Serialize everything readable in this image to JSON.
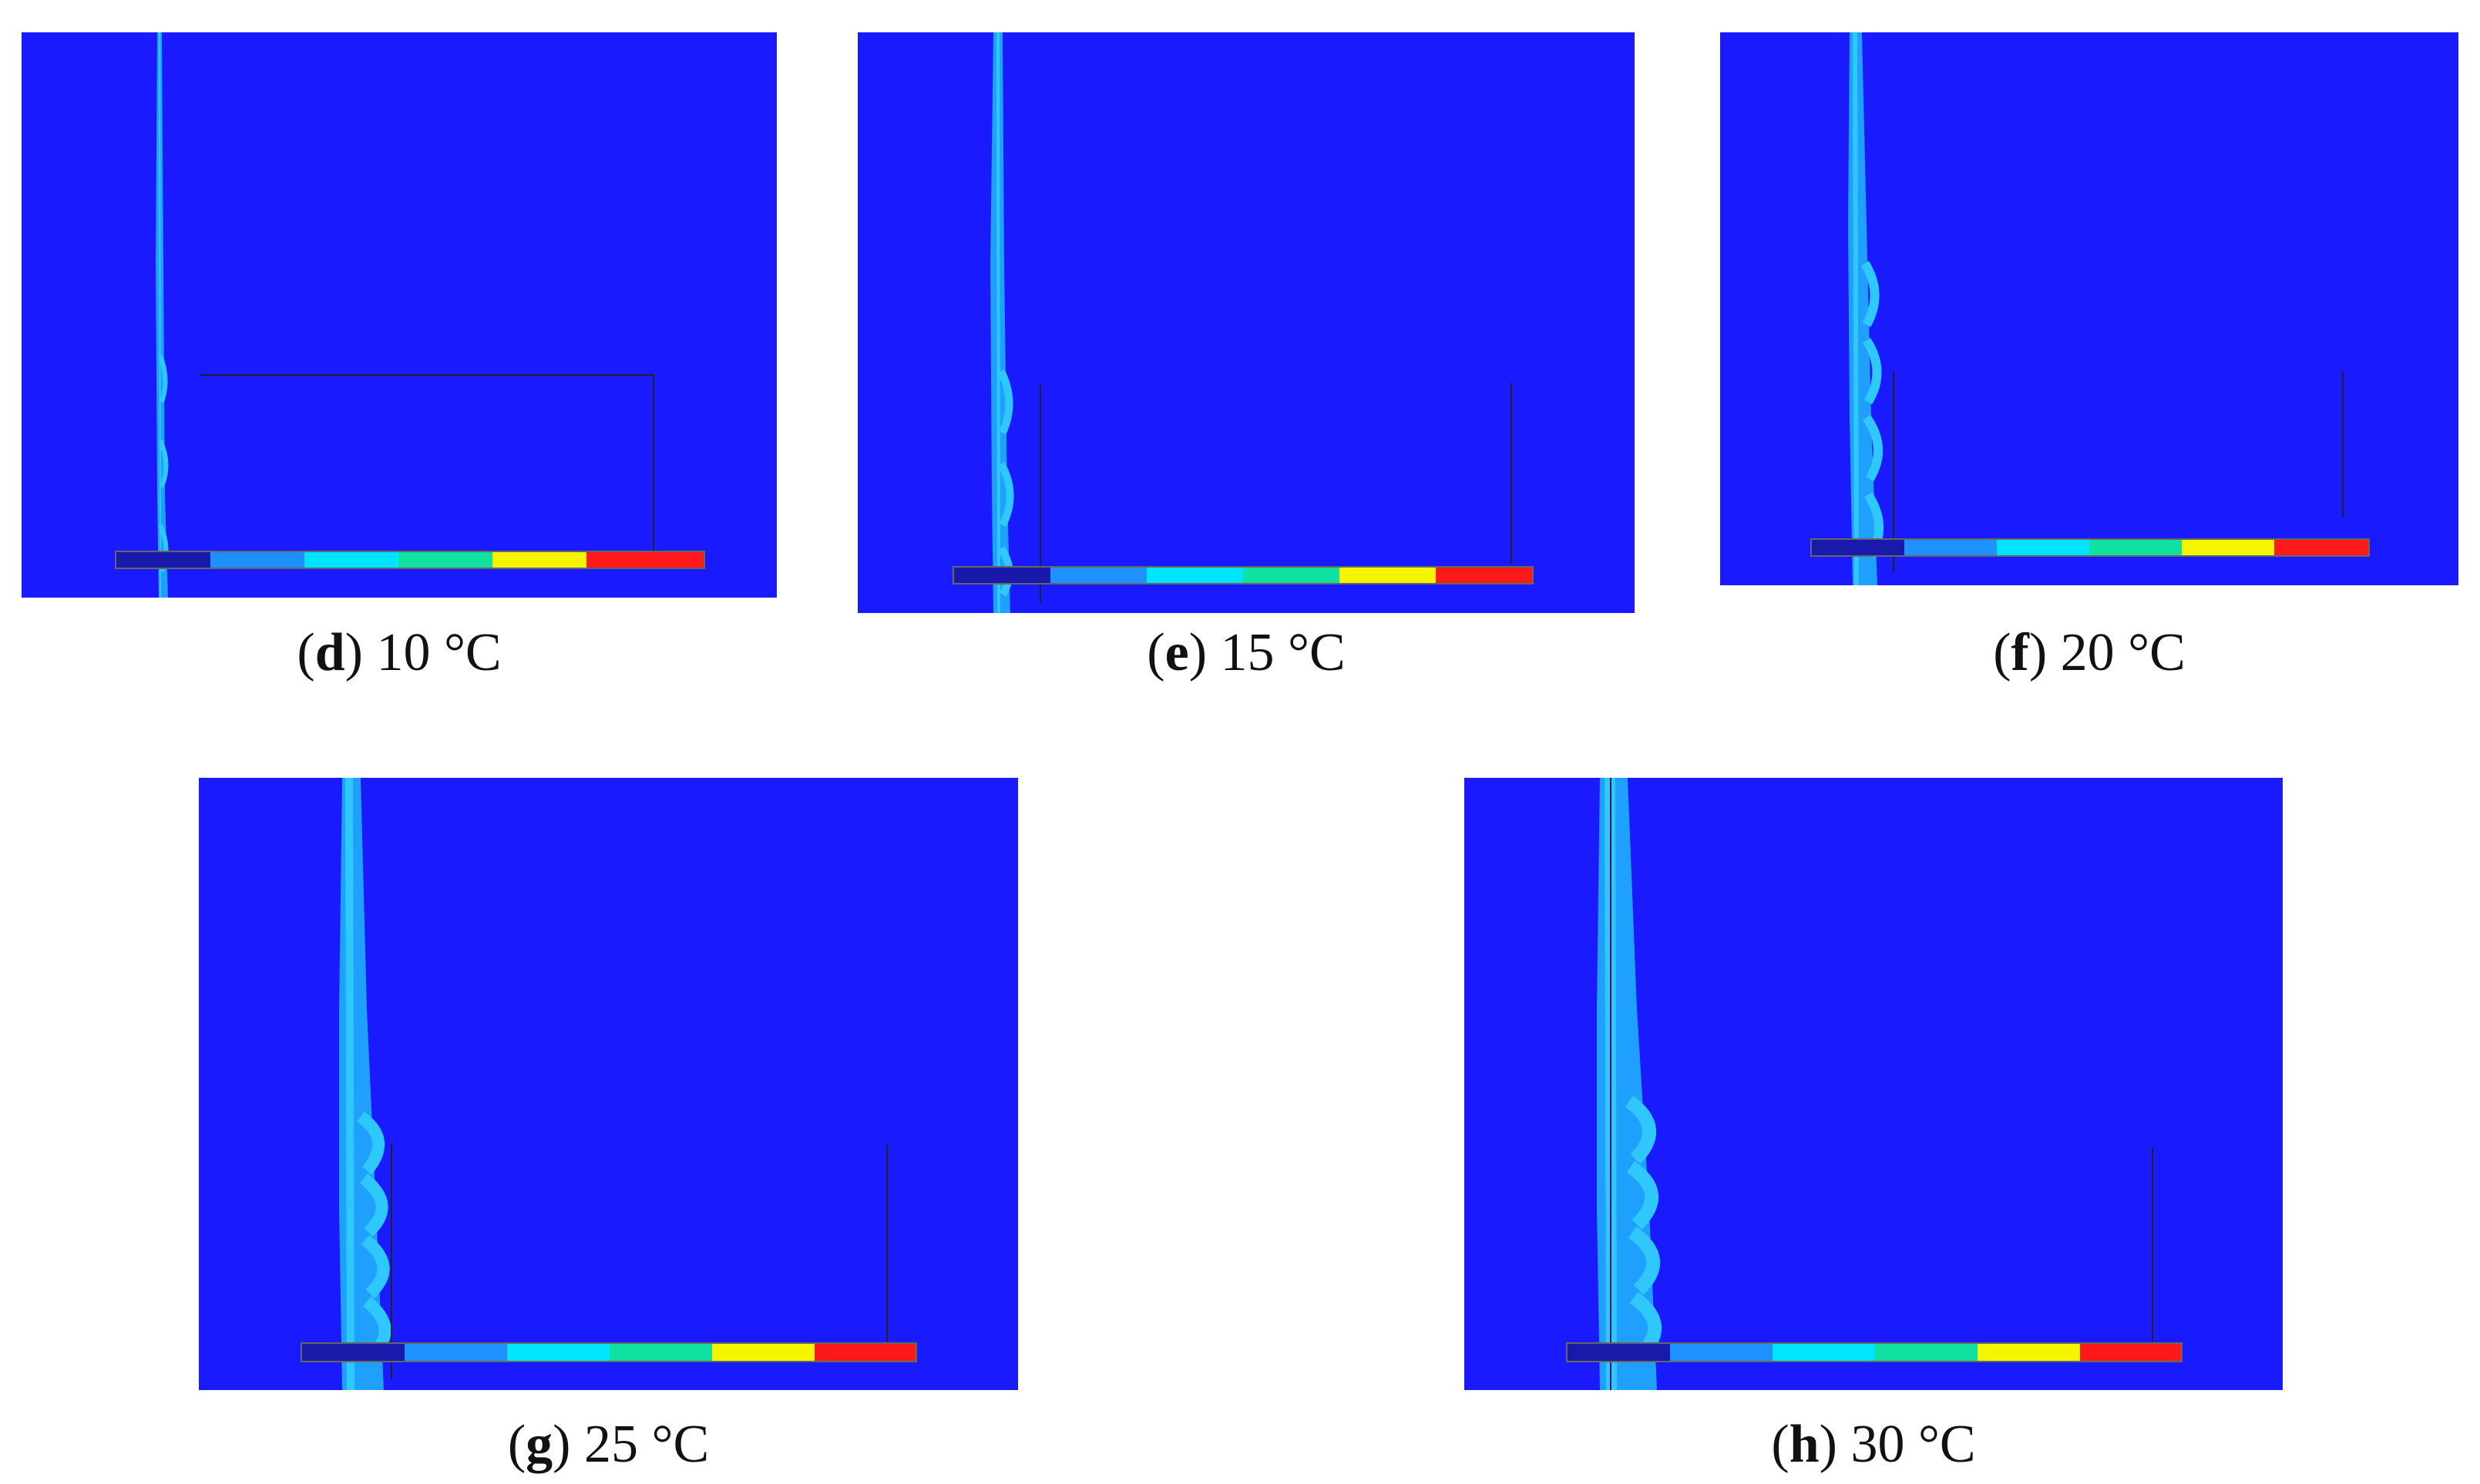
{
  "colors": {
    "background": "#1a1aff",
    "film_light": "#2ec8ff",
    "film_mid": "#1fa0ff",
    "legend": [
      "#1a1aaa",
      "#1e90ff",
      "#00e5ff",
      "#10e0a0",
      "#f5f500",
      "#ff1a1a"
    ]
  },
  "panels": [
    {
      "id": "d",
      "letter": "d",
      "label": "10 °C"
    },
    {
      "id": "e",
      "letter": "e",
      "label": "15 °C"
    },
    {
      "id": "f",
      "letter": "f",
      "label": "20 °C"
    },
    {
      "id": "g",
      "letter": "g",
      "label": "25 °C"
    },
    {
      "id": "h",
      "letter": "h",
      "label": "30 °C"
    }
  ]
}
